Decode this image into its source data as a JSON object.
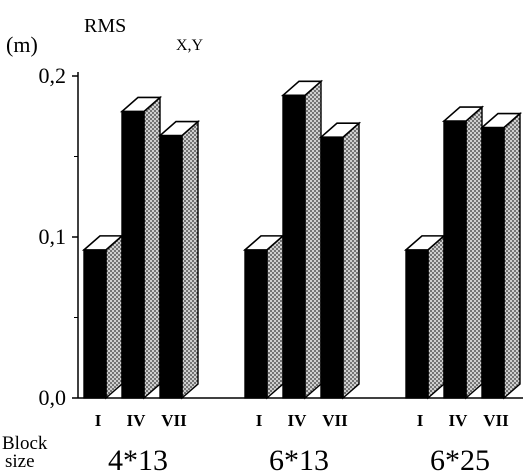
{
  "chart_data": {
    "type": "bar",
    "style": "3d-bar",
    "y_unit": "(m)",
    "y_title_main": "RMS",
    "y_title_sub": "X,Y",
    "ylim": [
      0.0,
      0.2
    ],
    "y_ticks": [
      0.0,
      0.1,
      0.2
    ],
    "y_tick_labels": [
      "0,0",
      "0,1",
      "0,2"
    ],
    "x_row_label_line1": "Block",
    "x_row_label_line2": "size",
    "groups": [
      {
        "label": "4*13",
        "categories": [
          "I",
          "IV",
          "VII"
        ],
        "values": [
          0.092,
          0.178,
          0.163
        ]
      },
      {
        "label": "6*13",
        "categories": [
          "I",
          "IV",
          "VII"
        ],
        "values": [
          0.092,
          0.188,
          0.162
        ]
      },
      {
        "label": "6*25",
        "categories": [
          "I",
          "IV",
          "VII"
        ],
        "values": [
          0.092,
          0.172,
          0.168
        ]
      }
    ],
    "colors": {
      "front": "#000000",
      "side_pattern": "#8a8a8a",
      "top": "#ffffff"
    }
  }
}
